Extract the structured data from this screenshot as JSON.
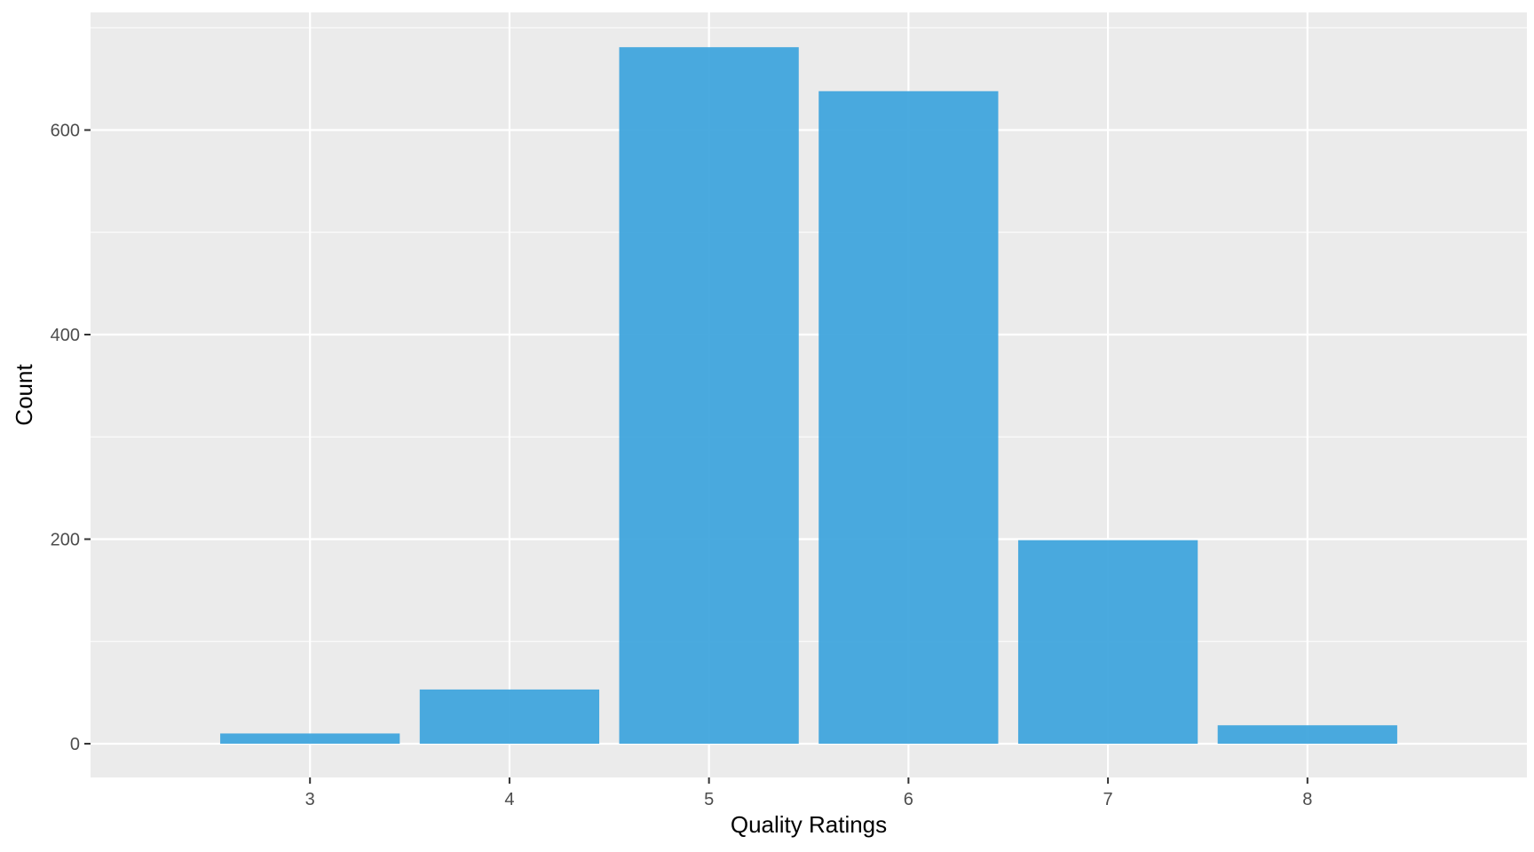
{
  "chart_data": {
    "type": "bar",
    "title": "",
    "xlabel": "Quality Ratings",
    "ylabel": "Count",
    "categories": [
      "3",
      "4",
      "5",
      "6",
      "7",
      "8"
    ],
    "values": [
      10,
      53,
      681,
      638,
      199,
      18
    ],
    "ylim": [
      -33,
      715
    ],
    "y_ticks": [
      "0",
      "200",
      "400",
      "600"
    ],
    "grid": true,
    "legend": "none",
    "colors": {
      "bar": "#3ba3dc",
      "panel_background": "#ebebeb",
      "grid": "#ffffff",
      "tick_label": "#4d4d4d",
      "tick_mark": "#333333"
    }
  }
}
